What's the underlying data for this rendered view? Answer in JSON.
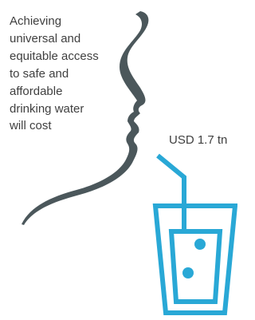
{
  "intro": {
    "lines": [
      "Achieving",
      "universal and",
      "equitable access",
      "to safe and",
      "affordable",
      "drinking water",
      "will cost"
    ]
  },
  "cost": {
    "label": "USD 1.7 tn"
  }
}
